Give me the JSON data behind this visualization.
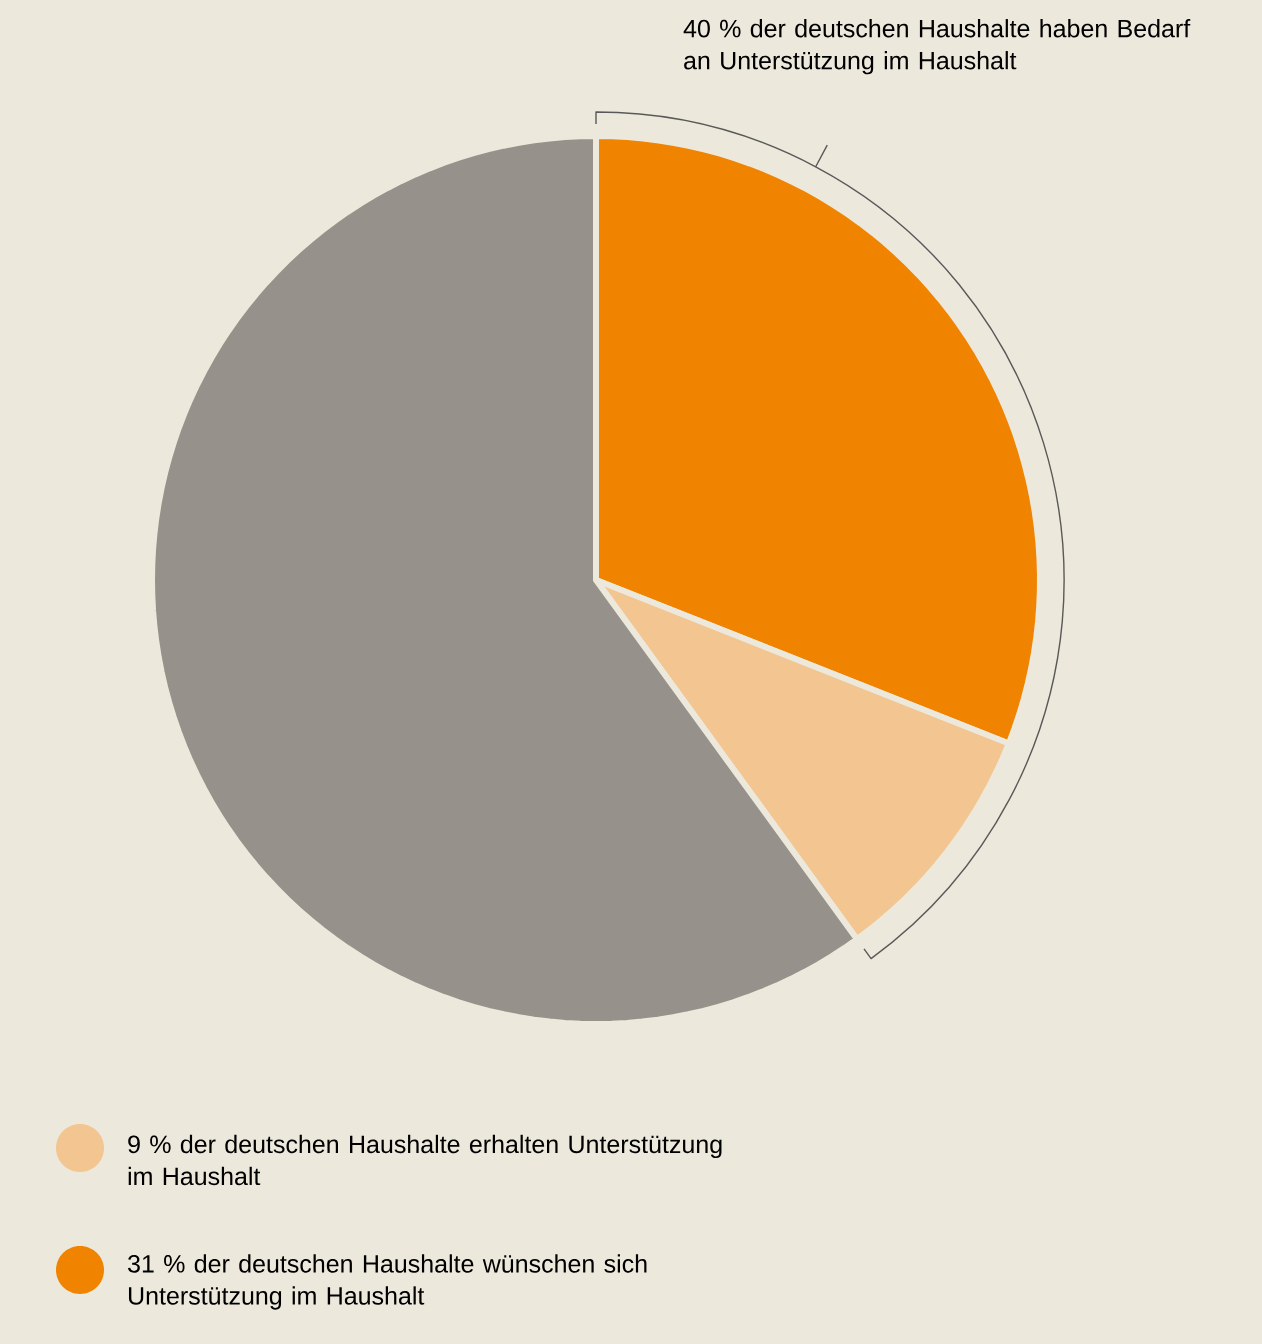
{
  "chart_data": {
    "type": "pie",
    "categories": [
      "31 % der deutschen Haushalte wünschen sich Unterstützung im Haushalt",
      "9 % der deutschen Haushalte erhalten Unterstützung im Haushalt",
      null
    ],
    "values": [
      31,
      9,
      60
    ],
    "colors": [
      "#f08300",
      "#f3c590",
      "#96928b"
    ],
    "annotations": [
      "40 % der deutschen Haushalte haben Bedarf an Unterstützung im Haushalt"
    ],
    "legend": "bottom left"
  }
}
